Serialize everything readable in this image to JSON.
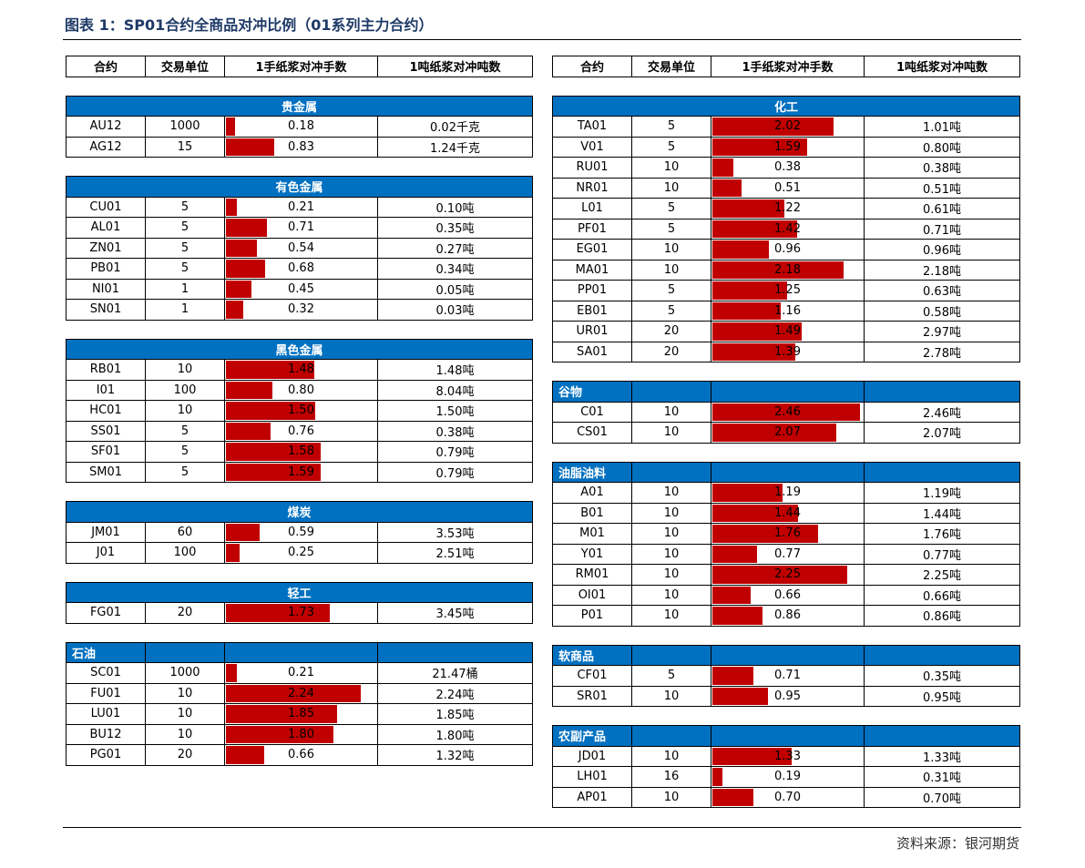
{
  "title": "图表 1：SP01合约全商品对冲比例（01系列主力合约）",
  "source": "资料来源：银河期货",
  "colors": {
    "header_blue": "#0070c0",
    "bar_red": "#c00000",
    "title_blue": "#1f3a68"
  },
  "bar_scale_max": 2.5,
  "columns": [
    "合约",
    "交易单位",
    "1手纸浆对冲手数",
    "1吨纸浆对冲吨数"
  ],
  "left_sections": [
    {
      "name": "贵金属",
      "style": "center",
      "rows": [
        {
          "contract": "AU12",
          "unit": "1000",
          "lots": "0.18",
          "tons": "0.02千克"
        },
        {
          "contract": "AG12",
          "unit": "15",
          "lots": "0.83",
          "tons": "1.24千克"
        }
      ]
    },
    {
      "name": "有色金属",
      "style": "center",
      "rows": [
        {
          "contract": "CU01",
          "unit": "5",
          "lots": "0.21",
          "tons": "0.10吨"
        },
        {
          "contract": "AL01",
          "unit": "5",
          "lots": "0.71",
          "tons": "0.35吨"
        },
        {
          "contract": "ZN01",
          "unit": "5",
          "lots": "0.54",
          "tons": "0.27吨"
        },
        {
          "contract": "PB01",
          "unit": "5",
          "lots": "0.68",
          "tons": "0.34吨"
        },
        {
          "contract": "NI01",
          "unit": "1",
          "lots": "0.45",
          "tons": "0.05吨"
        },
        {
          "contract": "SN01",
          "unit": "1",
          "lots": "0.32",
          "tons": "0.03吨"
        }
      ]
    },
    {
      "name": "黑色金属",
      "style": "center",
      "rows": [
        {
          "contract": "RB01",
          "unit": "10",
          "lots": "1.48",
          "tons": "1.48吨"
        },
        {
          "contract": "I01",
          "unit": "100",
          "lots": "0.80",
          "tons": "8.04吨"
        },
        {
          "contract": "HC01",
          "unit": "10",
          "lots": "1.50",
          "tons": "1.50吨"
        },
        {
          "contract": "SS01",
          "unit": "5",
          "lots": "0.76",
          "tons": "0.38吨"
        },
        {
          "contract": "SF01",
          "unit": "5",
          "lots": "1.58",
          "tons": "0.79吨"
        },
        {
          "contract": "SM01",
          "unit": "5",
          "lots": "1.59",
          "tons": "0.79吨"
        }
      ]
    },
    {
      "name": "煤炭",
      "style": "center",
      "rows": [
        {
          "contract": "JM01",
          "unit": "60",
          "lots": "0.59",
          "tons": "3.53吨"
        },
        {
          "contract": "J01",
          "unit": "100",
          "lots": "0.25",
          "tons": "2.51吨"
        }
      ]
    },
    {
      "name": "轻工",
      "style": "center",
      "rows": [
        {
          "contract": "FG01",
          "unit": "20",
          "lots": "1.73",
          "tons": "3.45吨"
        }
      ]
    },
    {
      "name": "石油",
      "style": "left",
      "rows": [
        {
          "contract": "SC01",
          "unit": "1000",
          "lots": "0.21",
          "tons": "21.47桶"
        },
        {
          "contract": "FU01",
          "unit": "10",
          "lots": "2.24",
          "tons": "2.24吨"
        },
        {
          "contract": "LU01",
          "unit": "10",
          "lots": "1.85",
          "tons": "1.85吨"
        },
        {
          "contract": "BU12",
          "unit": "10",
          "lots": "1.80",
          "tons": "1.80吨"
        },
        {
          "contract": "PG01",
          "unit": "20",
          "lots": "0.66",
          "tons": "1.32吨"
        }
      ]
    }
  ],
  "right_sections": [
    {
      "name": "化工",
      "style": "center",
      "rows": [
        {
          "contract": "TA01",
          "unit": "5",
          "lots": "2.02",
          "tons": "1.01吨"
        },
        {
          "contract": "V01",
          "unit": "5",
          "lots": "1.59",
          "tons": "0.80吨"
        },
        {
          "contract": "RU01",
          "unit": "10",
          "lots": "0.38",
          "tons": "0.38吨"
        },
        {
          "contract": "NR01",
          "unit": "10",
          "lots": "0.51",
          "tons": "0.51吨"
        },
        {
          "contract": "L01",
          "unit": "5",
          "lots": "1.22",
          "tons": "0.61吨"
        },
        {
          "contract": "PF01",
          "unit": "5",
          "lots": "1.42",
          "tons": "0.71吨"
        },
        {
          "contract": "EG01",
          "unit": "10",
          "lots": "0.96",
          "tons": "0.96吨"
        },
        {
          "contract": "MA01",
          "unit": "10",
          "lots": "2.18",
          "tons": "2.18吨"
        },
        {
          "contract": "PP01",
          "unit": "5",
          "lots": "1.25",
          "tons": "0.63吨"
        },
        {
          "contract": "EB01",
          "unit": "5",
          "lots": "1.16",
          "tons": "0.58吨"
        },
        {
          "contract": "UR01",
          "unit": "20",
          "lots": "1.49",
          "tons": "2.97吨"
        },
        {
          "contract": "SA01",
          "unit": "20",
          "lots": "1.39",
          "tons": "2.78吨"
        }
      ]
    },
    {
      "name": "谷物",
      "style": "left",
      "rows": [
        {
          "contract": "C01",
          "unit": "10",
          "lots": "2.46",
          "tons": "2.46吨"
        },
        {
          "contract": "CS01",
          "unit": "10",
          "lots": "2.07",
          "tons": "2.07吨"
        }
      ]
    },
    {
      "name": "油脂油料",
      "style": "left",
      "rows": [
        {
          "contract": "A01",
          "unit": "10",
          "lots": "1.19",
          "tons": "1.19吨"
        },
        {
          "contract": "B01",
          "unit": "10",
          "lots": "1.44",
          "tons": "1.44吨"
        },
        {
          "contract": "M01",
          "unit": "10",
          "lots": "1.76",
          "tons": "1.76吨"
        },
        {
          "contract": "Y01",
          "unit": "10",
          "lots": "0.77",
          "tons": "0.77吨"
        },
        {
          "contract": "RM01",
          "unit": "10",
          "lots": "2.25",
          "tons": "2.25吨"
        },
        {
          "contract": "OI01",
          "unit": "10",
          "lots": "0.66",
          "tons": "0.66吨"
        },
        {
          "contract": "P01",
          "unit": "10",
          "lots": "0.86",
          "tons": "0.86吨"
        }
      ]
    },
    {
      "name": "软商品",
      "style": "left",
      "rows": [
        {
          "contract": "CF01",
          "unit": "5",
          "lots": "0.71",
          "tons": "0.35吨"
        },
        {
          "contract": "SR01",
          "unit": "10",
          "lots": "0.95",
          "tons": "0.95吨"
        }
      ]
    },
    {
      "name": "农副产品",
      "style": "left",
      "rows": [
        {
          "contract": "JD01",
          "unit": "10",
          "lots": "1.33",
          "tons": "1.33吨"
        },
        {
          "contract": "LH01",
          "unit": "16",
          "lots": "0.19",
          "tons": "0.31吨"
        },
        {
          "contract": "AP01",
          "unit": "10",
          "lots": "0.70",
          "tons": "0.70吨"
        }
      ]
    }
  ]
}
